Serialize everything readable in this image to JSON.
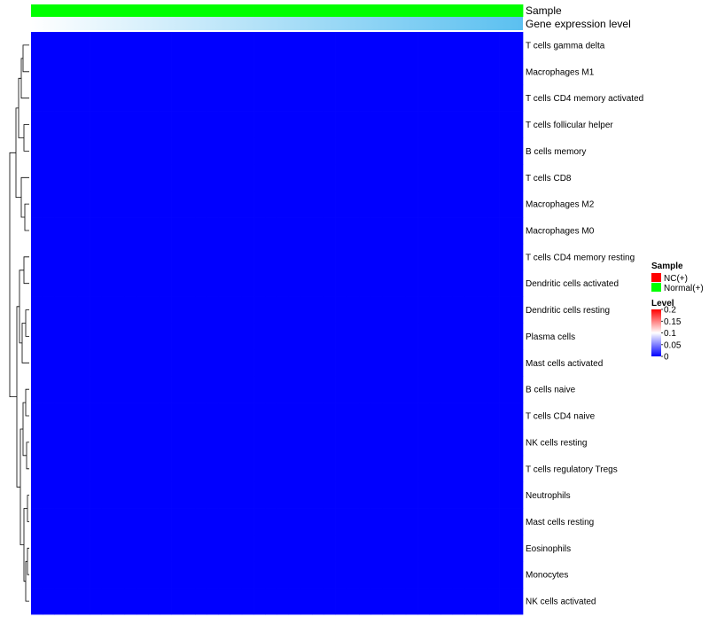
{
  "chart_data": {
    "type": "heatmap",
    "annotations": {
      "sample_track_label": "Sample",
      "gene_track_label": "Gene expression level",
      "sample_groups": [
        "N",
        "N",
        "N",
        "N",
        "N",
        "N",
        "N",
        "N",
        "N",
        "N",
        "N",
        "N",
        "N",
        "N",
        "N",
        "N",
        "N",
        "N",
        "N",
        "N",
        "N",
        "N",
        "N",
        "N",
        "N",
        "N",
        "N",
        "N",
        "N",
        "N",
        "N",
        "N",
        "N",
        "N",
        "N",
        "N",
        "N",
        "N",
        "N",
        "N",
        "N",
        "N"
      ],
      "gene_level_description": "gradient from white to light blue"
    },
    "row_labels": [
      "T cells gamma delta",
      "Macrophages M1",
      "T cells CD4 memory activated",
      "T cells follicular helper",
      "B cells memory",
      "T cells CD8",
      "Macrophages M2",
      "Macrophages M0",
      "T cells CD4 memory resting",
      "Dendritic cells activated",
      "Dendritic cells resting",
      "Plasma cells",
      "Mast cells activated",
      "B cells naive",
      "T cells CD4 naive",
      "NK cells resting",
      "T cells regulatory  Tregs",
      "Neutrophils",
      "Mast cells resting",
      "Eosinophils",
      "Monocytes",
      "NK cells activated"
    ],
    "values": [],
    "legend": {
      "sample_title": "Sample",
      "sample_entries": [
        {
          "label": "NC(+)",
          "color": "#ff0000"
        },
        {
          "label": "Normal(+)",
          "color": "#00ff00"
        }
      ],
      "level_title": "Level",
      "level_ticks": [
        "0.2",
        "0.15",
        "0.1",
        "0.05",
        "0"
      ],
      "level_range": [
        0,
        0.2
      ]
    },
    "colors": {
      "low": "#0000ff",
      "mid": "#ffffff",
      "high": "#ff0000",
      "nc": "#ff0000",
      "normal": "#00ff00",
      "gene_track_start": "#ffffff",
      "gene_track_end": "#5bc0f0"
    }
  }
}
